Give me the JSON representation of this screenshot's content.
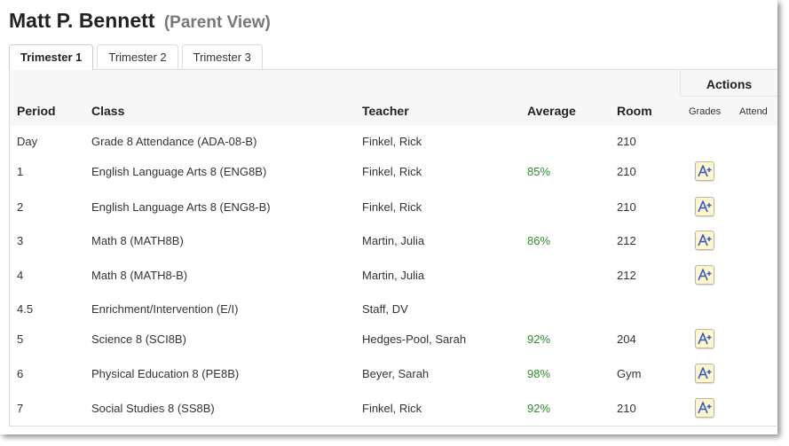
{
  "header": {
    "name": "Matt P. Bennett",
    "view": "(Parent View)"
  },
  "tabs": [
    {
      "label": "Trimester 1",
      "active": true
    },
    {
      "label": "Trimester 2",
      "active": false
    },
    {
      "label": "Trimester 3",
      "active": false
    }
  ],
  "table": {
    "actions_label": "Actions",
    "columns": {
      "period": "Period",
      "class": "Class",
      "teacher": "Teacher",
      "average": "Average",
      "room": "Room",
      "grades": "Grades",
      "attend": "Attend"
    },
    "rows": [
      {
        "period": "Day",
        "class": "Grade 8 Attendance (ADA-08-B)",
        "teacher": "Finkel, Rick",
        "average": "",
        "room": "210",
        "grades_icon": false
      },
      {
        "period": "1",
        "class": "English Language Arts 8 (ENG8B)",
        "teacher": "Finkel, Rick",
        "average": "85%",
        "room": "210",
        "grades_icon": true
      },
      {
        "period": "2",
        "class": "English Language Arts 8 (ENG8-B)",
        "teacher": "Finkel, Rick",
        "average": "",
        "room": "210",
        "grades_icon": true
      },
      {
        "period": "3",
        "class": "Math 8 (MATH8B)",
        "teacher": "Martin, Julia",
        "average": "86%",
        "room": "212",
        "grades_icon": true
      },
      {
        "period": "4",
        "class": "Math 8 (MATH8-B)",
        "teacher": "Martin, Julia",
        "average": "",
        "room": "212",
        "grades_icon": true
      },
      {
        "period": "4.5",
        "class": "Enrichment/Intervention (E/I)",
        "teacher": "Staff, DV",
        "average": "",
        "room": "",
        "grades_icon": false
      },
      {
        "period": "5",
        "class": "Science 8 (SCI8B)",
        "teacher": "Hedges-Pool, Sarah",
        "average": "92%",
        "room": "204",
        "grades_icon": true
      },
      {
        "period": "6",
        "class": "Physical Education 8 (PE8B)",
        "teacher": "Beyer, Sarah",
        "average": "98%",
        "room": "Gym",
        "grades_icon": true
      },
      {
        "period": "7",
        "class": "Social Studies 8 (SS8B)",
        "teacher": "Finkel, Rick",
        "average": "92%",
        "room": "210",
        "grades_icon": true
      }
    ]
  },
  "colors": {
    "average_text": "#2e8b2e",
    "grade_icon_bg": "#fff7cc",
    "grade_icon_letter": "#3355cc"
  },
  "icons": {
    "grades": "a-plus-grade-icon"
  }
}
